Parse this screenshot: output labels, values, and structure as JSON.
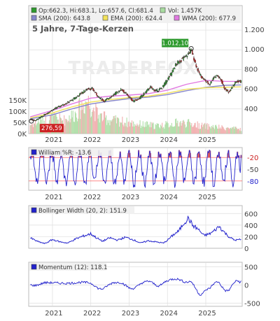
{
  "main": {
    "legend": {
      "row1": [
        {
          "color": "#2e9a2e",
          "text": "Op:662.3, Hi:683.1, Lo:657.6, Cl:681.4"
        },
        {
          "color": "#a8dca0",
          "text": "Vol: 1.457K"
        }
      ],
      "row2": [
        {
          "color": "#8888cc",
          "text": "SMA (200): 643.8"
        },
        {
          "color": "#f2e25a",
          "text": "EMA (200): 624.4"
        },
        {
          "color": "#e27ae2",
          "text": "WMA (200): 677.9"
        }
      ]
    },
    "subtitle": "5 Jahre, 7-Tage-Kerzen",
    "watermark": "TRADERFOX",
    "high_label": "1.012,10",
    "low_label": "276,59"
  },
  "colors": {
    "up": "#2e9a2e",
    "down": "#cc2222",
    "wick": "#333333",
    "sma": "#8888cc",
    "ema": "#f2e25a",
    "wma": "#e27ae2",
    "volume": "#a8dca0",
    "volume_down": "#f0a8a8",
    "williams": "#2222cc",
    "bollinger": "#2222cc",
    "momentum": "#2222cc",
    "grid": "#dddddd",
    "ref_line": "#ff4444",
    "panel_bg": "#ffffff"
  },
  "chart_data": [
    {
      "id": "price",
      "type": "candlestick",
      "title": "5 Jahre, 7-Tage-Kerzen",
      "x_tick_labels": [
        "2021",
        "2022",
        "2023",
        "2024",
        "2025"
      ],
      "y_tick_labels": [
        "1.200",
        "1.000",
        "800",
        "600",
        "400"
      ],
      "volume_tick_labels": [
        "150K",
        "100K",
        "50K",
        "0K"
      ],
      "ylim": [
        150,
        1250
      ],
      "volume_ylim": [
        0,
        160
      ],
      "last": {
        "open": 662.3,
        "high": 683.1,
        "low": 657.6,
        "close": 681.4,
        "volume_k": 1.457
      },
      "high": {
        "value": 1012.1,
        "year": 2024.62
      },
      "low": {
        "value": 276.59,
        "year": 2020.45
      },
      "close_path": [
        [
          2020.42,
          295
        ],
        [
          2020.55,
          282
        ],
        [
          2020.75,
          330
        ],
        [
          2020.95,
          380
        ],
        [
          2021.15,
          420
        ],
        [
          2021.35,
          455
        ],
        [
          2021.55,
          500
        ],
        [
          2021.75,
          560
        ],
        [
          2021.95,
          610
        ],
        [
          2022.05,
          600
        ],
        [
          2022.2,
          520
        ],
        [
          2022.35,
          480
        ],
        [
          2022.5,
          520
        ],
        [
          2022.65,
          560
        ],
        [
          2022.8,
          600
        ],
        [
          2022.95,
          540
        ],
        [
          2023.1,
          480
        ],
        [
          2023.25,
          500
        ],
        [
          2023.4,
          560
        ],
        [
          2023.55,
          620
        ],
        [
          2023.7,
          580
        ],
        [
          2023.85,
          610
        ],
        [
          2024.0,
          700
        ],
        [
          2024.1,
          760
        ],
        [
          2024.2,
          840
        ],
        [
          2024.3,
          880
        ],
        [
          2024.4,
          910
        ],
        [
          2024.5,
          940
        ],
        [
          2024.62,
          1000
        ],
        [
          2024.7,
          900
        ],
        [
          2024.8,
          780
        ],
        [
          2024.9,
          720
        ],
        [
          2025.0,
          680
        ],
        [
          2025.1,
          650
        ],
        [
          2025.2,
          720
        ],
        [
          2025.3,
          740
        ],
        [
          2025.4,
          690
        ],
        [
          2025.5,
          600
        ],
        [
          2025.6,
          570
        ],
        [
          2025.7,
          640
        ],
        [
          2025.8,
          680
        ],
        [
          2025.92,
          681
        ]
      ],
      "sma_200": [
        [
          2020.42,
          300
        ],
        [
          2021.0,
          340
        ],
        [
          2021.5,
          400
        ],
        [
          2022.0,
          450
        ],
        [
          2022.5,
          480
        ],
        [
          2023.0,
          505
        ],
        [
          2023.5,
          520
        ],
        [
          2024.0,
          545
        ],
        [
          2024.5,
          585
        ],
        [
          2025.0,
          620
        ],
        [
          2025.5,
          640
        ],
        [
          2025.92,
          644
        ]
      ],
      "ema_200": [
        [
          2020.42,
          310
        ],
        [
          2021.0,
          360
        ],
        [
          2021.5,
          420
        ],
        [
          2022.0,
          470
        ],
        [
          2022.5,
          495
        ],
        [
          2023.0,
          515
        ],
        [
          2023.5,
          530
        ],
        [
          2024.0,
          560
        ],
        [
          2024.5,
          600
        ],
        [
          2025.0,
          615
        ],
        [
          2025.5,
          620
        ],
        [
          2025.92,
          624
        ]
      ],
      "wma_200": [
        [
          2020.42,
          320
        ],
        [
          2021.0,
          385
        ],
        [
          2021.5,
          450
        ],
        [
          2022.0,
          510
        ],
        [
          2022.5,
          530
        ],
        [
          2023.0,
          540
        ],
        [
          2023.5,
          555
        ],
        [
          2024.0,
          590
        ],
        [
          2024.5,
          650
        ],
        [
          2025.0,
          690
        ],
        [
          2025.5,
          680
        ],
        [
          2025.92,
          678
        ]
      ],
      "volume_path": [
        [
          2020.42,
          40
        ],
        [
          2020.7,
          55
        ],
        [
          2021.0,
          70
        ],
        [
          2021.3,
          60
        ],
        [
          2021.6,
          90
        ],
        [
          2021.9,
          150
        ],
        [
          2022.2,
          80
        ],
        [
          2022.5,
          60
        ],
        [
          2022.8,
          55
        ],
        [
          2023.1,
          45
        ],
        [
          2023.4,
          40
        ],
        [
          2023.7,
          35
        ],
        [
          2024.0,
          40
        ],
        [
          2024.3,
          50
        ],
        [
          2024.6,
          45
        ],
        [
          2024.9,
          35
        ],
        [
          2025.2,
          30
        ],
        [
          2025.5,
          25
        ],
        [
          2025.92,
          20
        ]
      ]
    },
    {
      "id": "williams",
      "type": "line",
      "title": "William %R: -13.6",
      "y_tick_labels": [
        "-20",
        "-50",
        "-80"
      ],
      "ylim": [
        -100,
        0
      ],
      "reference_lines": [
        -20,
        -80
      ],
      "last": -13.6
    },
    {
      "id": "bollinger",
      "type": "line",
      "title": "Bollinger Width (20, 2): 151.9",
      "y_tick_labels": [
        "600",
        "400",
        "200",
        "0"
      ],
      "ylim": [
        0,
        700
      ],
      "last": 151.9,
      "path": [
        [
          2020.42,
          180
        ],
        [
          2020.6,
          120
        ],
        [
          2020.8,
          80
        ],
        [
          2021.0,
          150
        ],
        [
          2021.2,
          110
        ],
        [
          2021.4,
          90
        ],
        [
          2021.6,
          160
        ],
        [
          2021.8,
          210
        ],
        [
          2022.0,
          250
        ],
        [
          2022.15,
          180
        ],
        [
          2022.3,
          120
        ],
        [
          2022.5,
          180
        ],
        [
          2022.7,
          140
        ],
        [
          2022.9,
          190
        ],
        [
          2023.1,
          150
        ],
        [
          2023.3,
          90
        ],
        [
          2023.5,
          130
        ],
        [
          2023.7,
          110
        ],
        [
          2023.9,
          90
        ],
        [
          2024.0,
          140
        ],
        [
          2024.15,
          230
        ],
        [
          2024.3,
          300
        ],
        [
          2024.42,
          430
        ],
        [
          2024.55,
          520
        ],
        [
          2024.65,
          400
        ],
        [
          2024.8,
          330
        ],
        [
          2024.95,
          220
        ],
        [
          2025.1,
          250
        ],
        [
          2025.2,
          290
        ],
        [
          2025.35,
          380
        ],
        [
          2025.45,
          300
        ],
        [
          2025.6,
          200
        ],
        [
          2025.75,
          140
        ],
        [
          2025.92,
          152
        ]
      ]
    },
    {
      "id": "momentum",
      "type": "line",
      "title": "Momentum (12): 118.1",
      "y_tick_labels": [
        "500",
        "0",
        "-500"
      ],
      "ylim": [
        -550,
        550
      ],
      "last": 118.1
    }
  ],
  "x_axis_labels": [
    "2021",
    "2022",
    "2023",
    "2024",
    "2025"
  ]
}
